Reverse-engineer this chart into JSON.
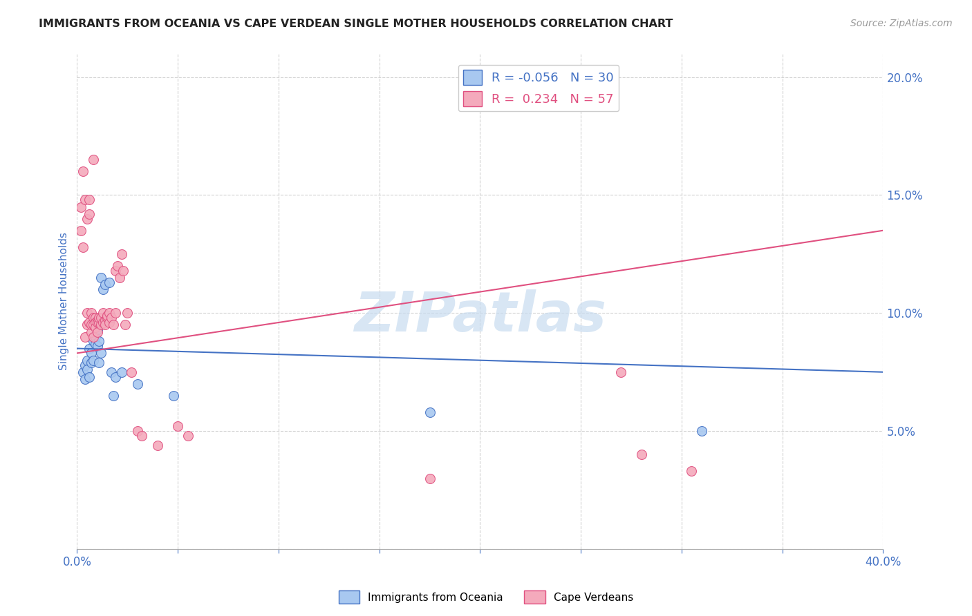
{
  "title": "IMMIGRANTS FROM OCEANIA VS CAPE VERDEAN SINGLE MOTHER HOUSEHOLDS CORRELATION CHART",
  "source": "Source: ZipAtlas.com",
  "ylabel": "Single Mother Households",
  "xlim": [
    0.0,
    0.4
  ],
  "ylim": [
    0.0,
    0.21
  ],
  "xticks": [
    0.0,
    0.05,
    0.1,
    0.15,
    0.2,
    0.25,
    0.3,
    0.35,
    0.4
  ],
  "yticks": [
    0.0,
    0.05,
    0.1,
    0.15,
    0.2
  ],
  "blue_R": -0.056,
  "blue_N": 30,
  "pink_R": 0.234,
  "pink_N": 57,
  "blue_trend_x0": 0.0,
  "blue_trend_y0": 0.085,
  "blue_trend_x1": 0.4,
  "blue_trend_y1": 0.075,
  "pink_trend_x0": 0.0,
  "pink_trend_y0": 0.083,
  "pink_trend_x1": 0.4,
  "pink_trend_y1": 0.135,
  "blue_scatter_x": [
    0.003,
    0.004,
    0.004,
    0.005,
    0.005,
    0.006,
    0.006,
    0.007,
    0.007,
    0.008,
    0.008,
    0.009,
    0.009,
    0.01,
    0.01,
    0.011,
    0.011,
    0.012,
    0.012,
    0.013,
    0.014,
    0.016,
    0.017,
    0.018,
    0.019,
    0.022,
    0.03,
    0.048,
    0.175,
    0.31
  ],
  "blue_scatter_y": [
    0.075,
    0.072,
    0.078,
    0.08,
    0.076,
    0.085,
    0.073,
    0.079,
    0.083,
    0.088,
    0.08,
    0.09,
    0.087,
    0.093,
    0.086,
    0.079,
    0.088,
    0.083,
    0.115,
    0.11,
    0.112,
    0.113,
    0.075,
    0.065,
    0.073,
    0.075,
    0.07,
    0.065,
    0.058,
    0.05
  ],
  "pink_scatter_x": [
    0.002,
    0.002,
    0.003,
    0.003,
    0.004,
    0.004,
    0.005,
    0.005,
    0.005,
    0.006,
    0.006,
    0.006,
    0.007,
    0.007,
    0.007,
    0.008,
    0.008,
    0.008,
    0.008,
    0.009,
    0.009,
    0.009,
    0.01,
    0.01,
    0.01,
    0.011,
    0.011,
    0.012,
    0.012,
    0.013,
    0.013,
    0.014,
    0.014,
    0.015,
    0.015,
    0.016,
    0.016,
    0.017,
    0.018,
    0.019,
    0.019,
    0.02,
    0.021,
    0.022,
    0.023,
    0.024,
    0.025,
    0.027,
    0.03,
    0.032,
    0.04,
    0.05,
    0.055,
    0.175,
    0.27,
    0.28,
    0.305
  ],
  "pink_scatter_y": [
    0.145,
    0.135,
    0.128,
    0.16,
    0.148,
    0.09,
    0.14,
    0.1,
    0.095,
    0.148,
    0.142,
    0.096,
    0.1,
    0.092,
    0.095,
    0.098,
    0.095,
    0.09,
    0.165,
    0.098,
    0.096,
    0.094,
    0.097,
    0.096,
    0.092,
    0.096,
    0.098,
    0.095,
    0.098,
    0.1,
    0.096,
    0.097,
    0.095,
    0.098,
    0.099,
    0.096,
    0.1,
    0.098,
    0.095,
    0.1,
    0.118,
    0.12,
    0.115,
    0.125,
    0.118,
    0.095,
    0.1,
    0.075,
    0.05,
    0.048,
    0.044,
    0.052,
    0.048,
    0.03,
    0.075,
    0.04,
    0.033
  ],
  "blue_color": "#A8C8F0",
  "pink_color": "#F4AABC",
  "blue_line_color": "#4472C4",
  "pink_line_color": "#E05080",
  "grid_color": "#CCCCCC",
  "watermark": "ZIPatlas",
  "watermark_color": "#C8DCF0",
  "background_color": "#FFFFFF",
  "title_color": "#222222",
  "axis_label_color": "#4472C4",
  "tick_label_color": "#4472C4"
}
